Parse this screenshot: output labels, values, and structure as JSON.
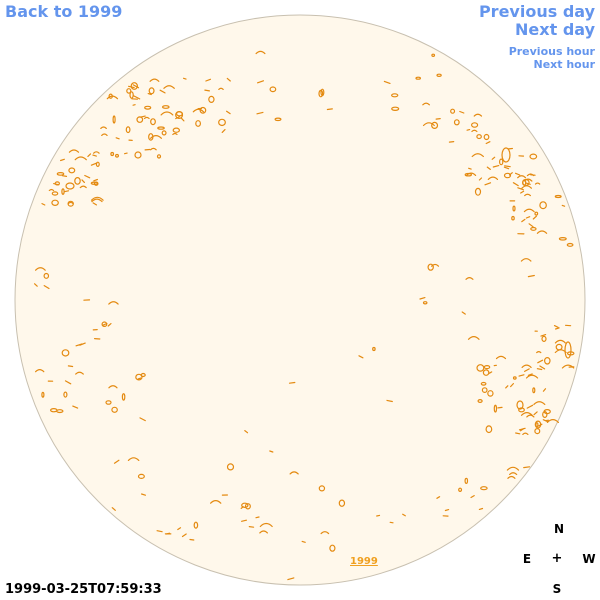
{
  "nav": {
    "back_label": "Back to 1999",
    "prev_day_label": "Previous day",
    "next_day_label": "Next day",
    "prev_hour_label": "Previous hour",
    "next_hour_label": "Next hour"
  },
  "image": {
    "year_link": "1999",
    "timestamp": "1999-03-25T07:59:33"
  },
  "compass": {
    "north": "N",
    "east": "E",
    "center": "+",
    "west": "W",
    "south": "S"
  },
  "colors": {
    "nav_link": "#6495ed",
    "disk_fill": "#fff8eb",
    "disk_border": "#c8c0b0",
    "contour": "#e48a10",
    "year_link": "#f0a020"
  }
}
